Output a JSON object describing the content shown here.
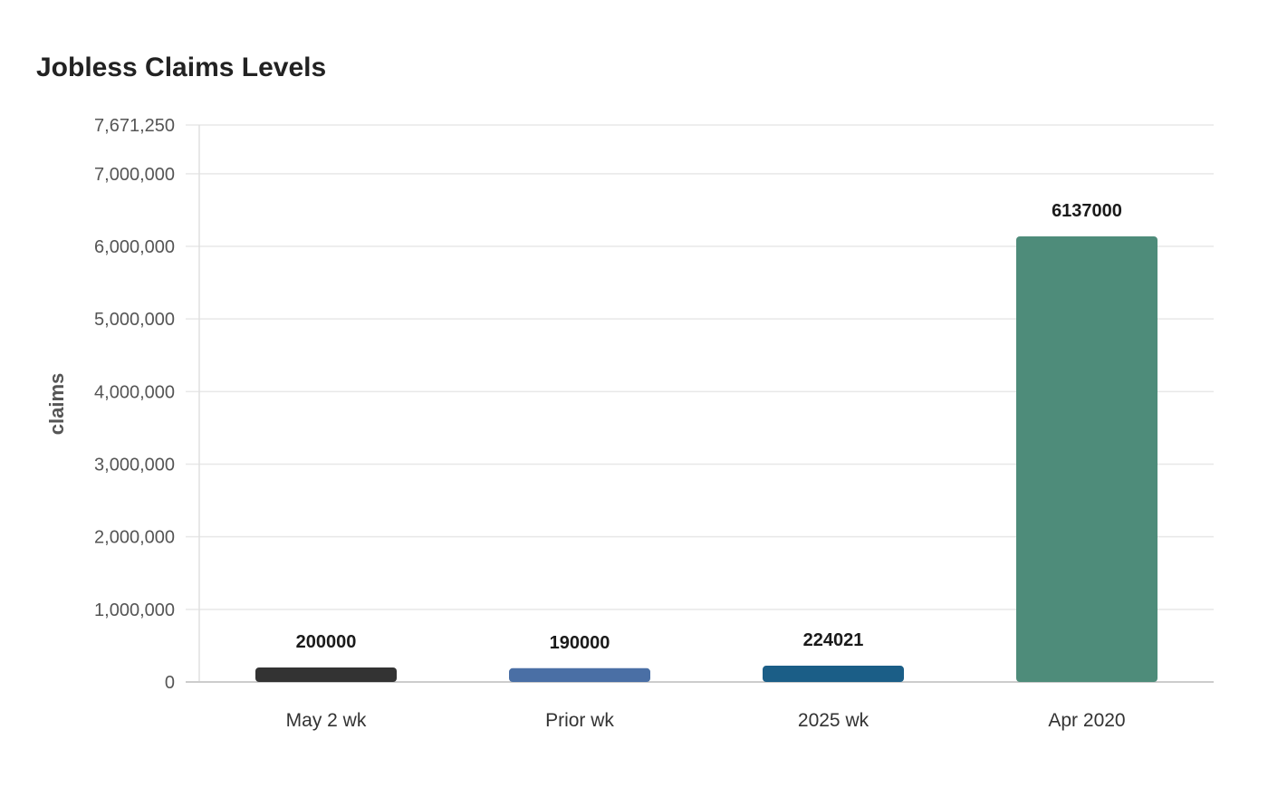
{
  "chart_data": {
    "type": "bar",
    "title": "Jobless Claims Levels",
    "ylabel": "claims",
    "xlabel": "",
    "categories": [
      "May 2 wk",
      "Prior wk",
      "2025 wk",
      "Apr 2020"
    ],
    "values": [
      200000,
      190000,
      224021,
      6137000
    ],
    "data_labels": [
      "200000",
      "190000",
      "224021",
      "6137000"
    ],
    "ylim": [
      0,
      7671250
    ],
    "yticks": [
      0,
      1000000,
      2000000,
      3000000,
      4000000,
      5000000,
      6000000,
      7000000,
      7671250
    ],
    "ytick_labels": [
      "0",
      "1,000,000",
      "2,000,000",
      "3,000,000",
      "4,000,000",
      "5,000,000",
      "6,000,000",
      "7,000,000",
      "7,671,250"
    ],
    "bar_colors": [
      "#333333",
      "#4a6fa5",
      "#1b5e87",
      "#4e8c7a"
    ],
    "grid": true,
    "legend": "none"
  }
}
